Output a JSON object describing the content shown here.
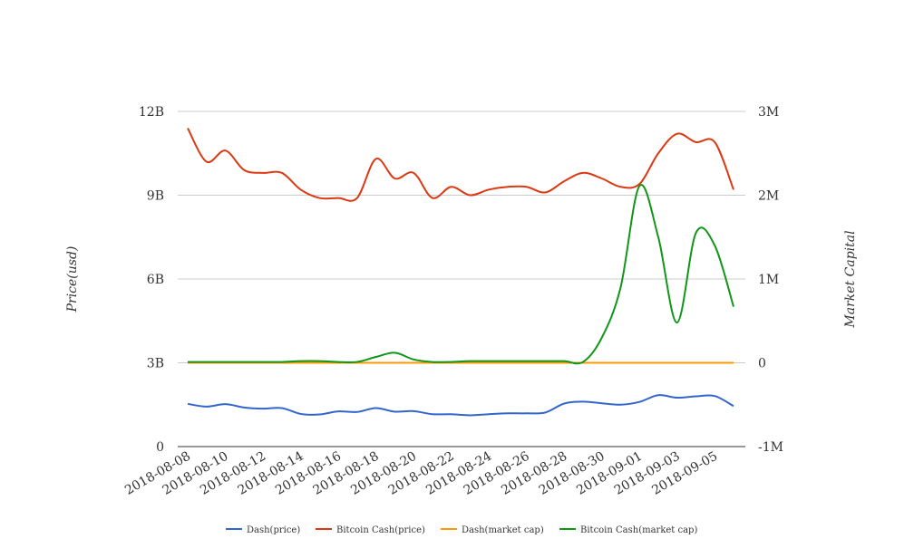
{
  "chart_data": {
    "type": "line",
    "title": "",
    "ylabel_left": "Price(usd)",
    "ylabel_right": "Market Capital",
    "ylim_left": [
      0,
      12000000000
    ],
    "ylim_right": [
      -1000000,
      3000000
    ],
    "yticks_left": [
      {
        "value": 0,
        "label": "0"
      },
      {
        "value": 3000000000,
        "label": "3B"
      },
      {
        "value": 6000000000,
        "label": "6B"
      },
      {
        "value": 9000000000,
        "label": "9B"
      },
      {
        "value": 12000000000,
        "label": "12B"
      }
    ],
    "yticks_right": [
      {
        "value": -1000000,
        "label": "-1M"
      },
      {
        "value": 0,
        "label": "0"
      },
      {
        "value": 1000000,
        "label": "1M"
      },
      {
        "value": 2000000,
        "label": "2M"
      },
      {
        "value": 3000000,
        "label": "3M"
      }
    ],
    "x": [
      "2018-08-08",
      "2018-08-09",
      "2018-08-10",
      "2018-08-11",
      "2018-08-12",
      "2018-08-13",
      "2018-08-14",
      "2018-08-15",
      "2018-08-16",
      "2018-08-17",
      "2018-08-18",
      "2018-08-19",
      "2018-08-20",
      "2018-08-21",
      "2018-08-22",
      "2018-08-23",
      "2018-08-24",
      "2018-08-25",
      "2018-08-26",
      "2018-08-27",
      "2018-08-28",
      "2018-08-29",
      "2018-08-30",
      "2018-08-31",
      "2018-09-01",
      "2018-09-02",
      "2018-09-03",
      "2018-09-04",
      "2018-09-05",
      "2018-09-06"
    ],
    "xtick_labels": [
      "2018-08-08",
      "2018-08-10",
      "2018-08-12",
      "2018-08-14",
      "2018-08-16",
      "2018-08-18",
      "2018-08-20",
      "2018-08-22",
      "2018-08-24",
      "2018-08-26",
      "2018-08-28",
      "2018-08-30",
      "2018-09-01",
      "2018-09-03",
      "2018-09-05"
    ],
    "legend_position": "bottom",
    "grid": true,
    "series": [
      {
        "name": "Dash(price)",
        "axis": "left",
        "color": "#3366cc",
        "values": [
          1530000000,
          1430000000,
          1520000000,
          1400000000,
          1360000000,
          1380000000,
          1170000000,
          1150000000,
          1260000000,
          1240000000,
          1380000000,
          1250000000,
          1270000000,
          1160000000,
          1160000000,
          1120000000,
          1160000000,
          1190000000,
          1190000000,
          1220000000,
          1540000000,
          1610000000,
          1550000000,
          1500000000,
          1600000000,
          1840000000,
          1750000000,
          1800000000,
          1810000000,
          1450000000
        ]
      },
      {
        "name": "Bitcoin Cash(price)",
        "axis": "left",
        "color": "#dc3912",
        "values": [
          11400000000,
          10200000000,
          10600000000,
          9900000000,
          9800000000,
          9800000000,
          9200000000,
          8900000000,
          8900000000,
          8900000000,
          10300000000,
          9600000000,
          9800000000,
          8900000000,
          9300000000,
          9000000000,
          9200000000,
          9300000000,
          9300000000,
          9100000000,
          9500000000,
          9800000000,
          9600000000,
          9300000000,
          9400000000,
          10500000000,
          11200000000,
          10900000000,
          10900000000,
          9200000000
        ]
      },
      {
        "name": "Dash(market cap)",
        "axis": "right",
        "color": "#ff9900",
        "values": [
          0,
          0,
          0,
          0,
          0,
          0,
          0,
          0,
          0,
          0,
          0,
          0,
          0,
          0,
          0,
          0,
          0,
          0,
          0,
          0,
          0,
          0,
          0,
          0,
          0,
          0,
          0,
          0,
          0,
          0
        ]
      },
      {
        "name": "Bitcoin Cash(market cap)",
        "axis": "right",
        "color": "#109618",
        "values": [
          10000,
          10000,
          10000,
          10000,
          10000,
          10000,
          20000,
          20000,
          10000,
          10000,
          70000,
          120000,
          40000,
          10000,
          10000,
          20000,
          20000,
          20000,
          20000,
          20000,
          20000,
          10000,
          300000,
          900000,
          2110000,
          1500000,
          480000,
          1550000,
          1400000,
          670000
        ]
      }
    ]
  }
}
